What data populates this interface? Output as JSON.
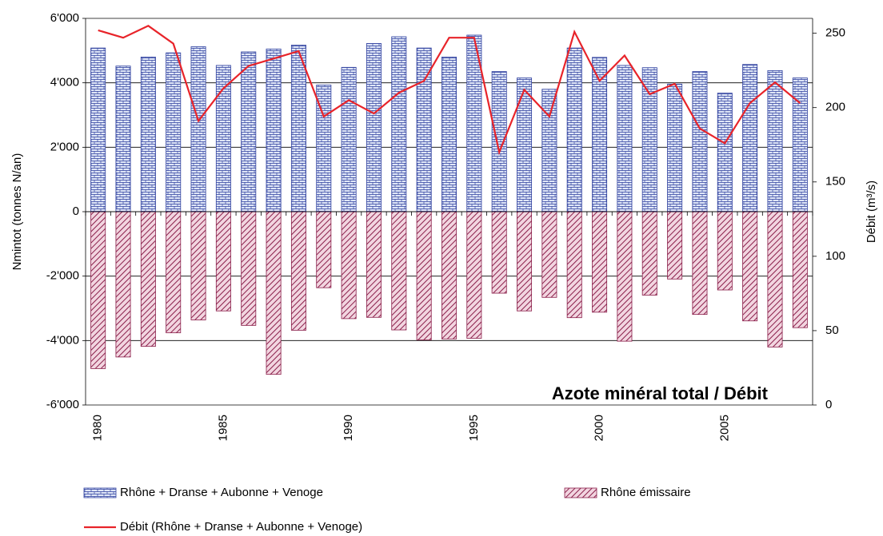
{
  "chart_data": {
    "type": "bar-line",
    "title": "Azote minéral total / Débit",
    "y_label": "Nmintot (tonnes N/an)",
    "y2_label": "Débit (m³/s)",
    "categories": [
      "1980",
      null,
      null,
      null,
      null,
      "1985",
      null,
      null,
      null,
      null,
      "1990",
      null,
      null,
      null,
      null,
      "1995",
      null,
      null,
      null,
      null,
      "2000",
      null,
      null,
      null,
      null,
      "2005",
      null,
      null,
      null
    ],
    "ylim": [
      -6000,
      6000
    ],
    "yticks": [
      {
        "value": -6000,
        "label": "-6'000"
      },
      {
        "value": -4000,
        "label": "-4'000"
      },
      {
        "value": -2000,
        "label": "-2'000"
      },
      0,
      {
        "value": 2000,
        "label": "2'000"
      },
      {
        "value": 4000,
        "label": "4'000"
      },
      {
        "value": 6000,
        "label": "6'000"
      }
    ],
    "y2lim": [
      0,
      260
    ],
    "y2ticks": [
      0,
      50,
      100,
      150,
      200,
      250
    ],
    "grid": true,
    "series": [
      {
        "name": "Rhône + Dranse + Aubonne + Venoge",
        "kind": "bar",
        "pattern": "bricks",
        "color": "#2e3f9e",
        "values": [
          5080,
          4520,
          4800,
          4930,
          5120,
          4540,
          4960,
          5050,
          5170,
          3930,
          4480,
          5220,
          5430,
          5080,
          4800,
          5480,
          4350,
          4150,
          3800,
          5080,
          4790,
          4540,
          4470,
          3960,
          4350,
          3680,
          4570,
          4380,
          4150
        ]
      },
      {
        "name": "Rhône émissaire",
        "kind": "bar",
        "pattern": "diagonal",
        "color": "#8a1f4a",
        "values": [
          -4870,
          -4510,
          -4180,
          -3760,
          -3360,
          -3080,
          -3530,
          -5050,
          -3680,
          -2360,
          -3320,
          -3280,
          -3670,
          -3980,
          -3950,
          -3930,
          -2530,
          -3080,
          -2660,
          -3290,
          -3120,
          -4020,
          -2590,
          -2090,
          -3190,
          -2430,
          -3390,
          -4200,
          -3600
        ]
      },
      {
        "name": "Débit (Rhône + Dranse + Aubonne + Venoge)",
        "kind": "line",
        "axis": "y2",
        "color": "#e8242a",
        "values": [
          252,
          247,
          255,
          243,
          191,
          213,
          228,
          233,
          238,
          194,
          205,
          196,
          210,
          218,
          247,
          247,
          170,
          212,
          194,
          251,
          218,
          235,
          209,
          216,
          186,
          176,
          203,
          217,
          203
        ]
      }
    ]
  }
}
